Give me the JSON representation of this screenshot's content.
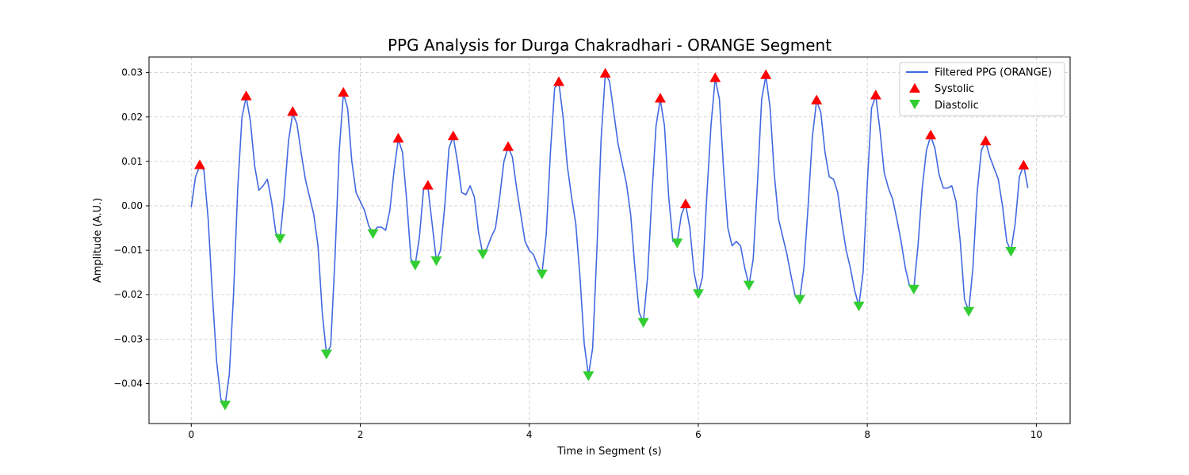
{
  "chart_data": {
    "type": "line",
    "title": "PPG Analysis for Durga Chakradhari - ORANGE Segment",
    "xlabel": "Time in Segment (s)",
    "ylabel": "Amplitude (A.U.)",
    "xlim": [
      -0.5,
      10.4
    ],
    "ylim": [
      -0.049,
      0.0335
    ],
    "xticks": [
      0,
      2,
      4,
      6,
      8,
      10
    ],
    "xtick_labels": [
      "0",
      "2",
      "4",
      "6",
      "8",
      "10"
    ],
    "yticks": [
      -0.04,
      -0.03,
      -0.02,
      -0.01,
      0.0,
      0.01,
      0.02,
      0.03
    ],
    "ytick_labels": [
      "−0.04",
      "−0.03",
      "−0.02",
      "−0.01",
      "0.00",
      "0.01",
      "0.02",
      "0.03"
    ],
    "grid": true,
    "legend_position": "top-right",
    "series": [
      {
        "name": "Filtered PPG (ORANGE)",
        "color": "#4169e1",
        "points": [
          [
            0.0,
            -0.0003
          ],
          [
            0.05,
            0.0065
          ],
          [
            0.1,
            0.009
          ],
          [
            0.15,
            0.008
          ],
          [
            0.2,
            -0.003
          ],
          [
            0.25,
            -0.02
          ],
          [
            0.3,
            -0.035
          ],
          [
            0.35,
            -0.0435
          ],
          [
            0.4,
            -0.0448
          ],
          [
            0.45,
            -0.038
          ],
          [
            0.5,
            -0.02
          ],
          [
            0.55,
            0.004
          ],
          [
            0.6,
            0.02
          ],
          [
            0.65,
            0.0245
          ],
          [
            0.7,
            0.019
          ],
          [
            0.75,
            0.009
          ],
          [
            0.8,
            0.0035
          ],
          [
            0.85,
            0.0045
          ],
          [
            0.9,
            0.006
          ],
          [
            0.95,
            0.001
          ],
          [
            1.0,
            -0.006
          ],
          [
            1.05,
            -0.0073
          ],
          [
            1.1,
            0.002
          ],
          [
            1.15,
            0.0145
          ],
          [
            1.2,
            0.0208
          ],
          [
            1.25,
            0.0185
          ],
          [
            1.3,
            0.012
          ],
          [
            1.35,
            0.006
          ],
          [
            1.4,
            0.002
          ],
          [
            1.45,
            -0.002
          ],
          [
            1.5,
            -0.009
          ],
          [
            1.55,
            -0.024
          ],
          [
            1.6,
            -0.0333
          ],
          [
            1.65,
            -0.0315
          ],
          [
            1.7,
            -0.012
          ],
          [
            1.75,
            0.012
          ],
          [
            1.8,
            0.0253
          ],
          [
            1.85,
            0.022
          ],
          [
            1.9,
            0.01
          ],
          [
            1.95,
            0.003
          ],
          [
            2.0,
            0.001
          ],
          [
            2.05,
            -0.001
          ],
          [
            2.1,
            -0.0045
          ],
          [
            2.15,
            -0.0062
          ],
          [
            2.2,
            -0.0048
          ],
          [
            2.25,
            -0.0048
          ],
          [
            2.3,
            -0.0055
          ],
          [
            2.35,
            -0.001
          ],
          [
            2.4,
            0.008
          ],
          [
            2.45,
            0.015
          ],
          [
            2.5,
            0.012
          ],
          [
            2.55,
            0.001
          ],
          [
            2.6,
            -0.012
          ],
          [
            2.65,
            -0.0133
          ],
          [
            2.7,
            -0.007
          ],
          [
            2.75,
            0.004
          ],
          [
            2.8,
            0.0043
          ],
          [
            2.85,
            -0.004
          ],
          [
            2.9,
            -0.0123
          ],
          [
            2.95,
            -0.01
          ],
          [
            3.0,
            0.0
          ],
          [
            3.05,
            0.013
          ],
          [
            3.1,
            0.0156
          ],
          [
            3.15,
            0.01
          ],
          [
            3.2,
            0.003
          ],
          [
            3.25,
            0.0025
          ],
          [
            3.3,
            0.0045
          ],
          [
            3.35,
            0.002
          ],
          [
            3.4,
            -0.006
          ],
          [
            3.45,
            -0.0108
          ],
          [
            3.5,
            -0.0095
          ],
          [
            3.55,
            -0.007
          ],
          [
            3.6,
            -0.005
          ],
          [
            3.65,
            0.002
          ],
          [
            3.7,
            0.01
          ],
          [
            3.75,
            0.0132
          ],
          [
            3.8,
            0.011
          ],
          [
            3.85,
            0.004
          ],
          [
            3.9,
            -0.002
          ],
          [
            3.95,
            -0.008
          ],
          [
            4.0,
            -0.01
          ],
          [
            4.05,
            -0.011
          ],
          [
            4.1,
            -0.0135
          ],
          [
            4.15,
            -0.0153
          ],
          [
            4.2,
            -0.0065
          ],
          [
            4.25,
            0.012
          ],
          [
            4.3,
            0.0265
          ],
          [
            4.35,
            0.0277
          ],
          [
            4.4,
            0.02
          ],
          [
            4.45,
            0.009
          ],
          [
            4.5,
            0.002
          ],
          [
            4.55,
            -0.004
          ],
          [
            4.6,
            -0.016
          ],
          [
            4.65,
            -0.031
          ],
          [
            4.7,
            -0.0382
          ],
          [
            4.75,
            -0.032
          ],
          [
            4.8,
            -0.01
          ],
          [
            4.85,
            0.015
          ],
          [
            4.9,
            0.0298
          ],
          [
            4.95,
            0.028
          ],
          [
            5.0,
            0.021
          ],
          [
            5.05,
            0.014
          ],
          [
            5.1,
            0.0095
          ],
          [
            5.15,
            0.005
          ],
          [
            5.2,
            -0.002
          ],
          [
            5.25,
            -0.014
          ],
          [
            5.3,
            -0.024
          ],
          [
            5.35,
            -0.0262
          ],
          [
            5.4,
            -0.016
          ],
          [
            5.45,
            0.002
          ],
          [
            5.5,
            0.018
          ],
          [
            5.55,
            0.024
          ],
          [
            5.6,
            0.018
          ],
          [
            5.65,
            0.002
          ],
          [
            5.7,
            -0.008
          ],
          [
            5.75,
            -0.0083
          ],
          [
            5.8,
            -0.002
          ],
          [
            5.85,
            0.0004
          ],
          [
            5.9,
            -0.005
          ],
          [
            5.95,
            -0.015
          ],
          [
            6.0,
            -0.0197
          ],
          [
            6.05,
            -0.016
          ],
          [
            6.1,
            0.002
          ],
          [
            6.15,
            0.018
          ],
          [
            6.2,
            0.0287
          ],
          [
            6.25,
            0.024
          ],
          [
            6.3,
            0.008
          ],
          [
            6.35,
            -0.005
          ],
          [
            6.4,
            -0.009
          ],
          [
            6.45,
            -0.008
          ],
          [
            6.5,
            -0.009
          ],
          [
            6.55,
            -0.014
          ],
          [
            6.6,
            -0.0178
          ],
          [
            6.65,
            -0.012
          ],
          [
            6.7,
            0.005
          ],
          [
            6.75,
            0.024
          ],
          [
            6.8,
            0.0293
          ],
          [
            6.85,
            0.022
          ],
          [
            6.9,
            0.007
          ],
          [
            6.95,
            -0.003
          ],
          [
            7.0,
            -0.007
          ],
          [
            7.05,
            -0.011
          ],
          [
            7.1,
            -0.016
          ],
          [
            7.15,
            -0.0205
          ],
          [
            7.2,
            -0.021
          ],
          [
            7.25,
            -0.014
          ],
          [
            7.3,
            0.0
          ],
          [
            7.35,
            0.0155
          ],
          [
            7.4,
            0.0237
          ],
          [
            7.45,
            0.021
          ],
          [
            7.5,
            0.012
          ],
          [
            7.55,
            0.0065
          ],
          [
            7.6,
            0.006
          ],
          [
            7.65,
            0.003
          ],
          [
            7.7,
            -0.004
          ],
          [
            7.75,
            -0.01
          ],
          [
            7.8,
            -0.014
          ],
          [
            7.85,
            -0.019
          ],
          [
            7.9,
            -0.0225
          ],
          [
            7.95,
            -0.015
          ],
          [
            8.0,
            0.005
          ],
          [
            8.05,
            0.022
          ],
          [
            8.1,
            0.0248
          ],
          [
            8.15,
            0.017
          ],
          [
            8.2,
            0.0075
          ],
          [
            8.25,
            0.004
          ],
          [
            8.3,
            0.0015
          ],
          [
            8.35,
            -0.003
          ],
          [
            8.4,
            -0.008
          ],
          [
            8.45,
            -0.014
          ],
          [
            8.5,
            -0.018
          ],
          [
            8.55,
            -0.0187
          ],
          [
            8.6,
            -0.009
          ],
          [
            8.65,
            0.004
          ],
          [
            8.7,
            0.0125
          ],
          [
            8.75,
            0.0157
          ],
          [
            8.8,
            0.013
          ],
          [
            8.85,
            0.007
          ],
          [
            8.9,
            0.004
          ],
          [
            8.95,
            0.004
          ],
          [
            9.0,
            0.0045
          ],
          [
            9.05,
            0.001
          ],
          [
            9.1,
            -0.008
          ],
          [
            9.15,
            -0.021
          ],
          [
            9.2,
            -0.0237
          ],
          [
            9.25,
            -0.014
          ],
          [
            9.3,
            0.003
          ],
          [
            9.35,
            0.0125
          ],
          [
            9.4,
            0.0145
          ],
          [
            9.45,
            0.011
          ],
          [
            9.5,
            0.0085
          ],
          [
            9.55,
            0.006
          ],
          [
            9.6,
            0.0
          ],
          [
            9.65,
            -0.008
          ],
          [
            9.7,
            -0.0102
          ],
          [
            9.75,
            -0.004
          ],
          [
            9.8,
            0.0065
          ],
          [
            9.85,
            0.0092
          ],
          [
            9.9,
            0.004
          ]
        ]
      },
      {
        "name": "Systolic",
        "color": "#ff0000",
        "marker": "triangle-up",
        "points": [
          [
            0.1,
            0.0092
          ],
          [
            0.65,
            0.0247
          ],
          [
            1.2,
            0.0212
          ],
          [
            1.8,
            0.0255
          ],
          [
            2.45,
            0.0152
          ],
          [
            2.8,
            0.0046
          ],
          [
            3.1,
            0.0157
          ],
          [
            3.75,
            0.0133
          ],
          [
            4.35,
            0.0279
          ],
          [
            4.9,
            0.0298
          ],
          [
            5.55,
            0.0242
          ],
          [
            5.85,
            0.0004
          ],
          [
            6.2,
            0.0288
          ],
          [
            6.8,
            0.0295
          ],
          [
            7.4,
            0.0238
          ],
          [
            8.1,
            0.0249
          ],
          [
            8.75,
            0.0159
          ],
          [
            9.4,
            0.0146
          ],
          [
            9.85,
            0.0091
          ]
        ]
      },
      {
        "name": "Diastolic",
        "color": "#32cd32",
        "marker": "triangle-down",
        "points": [
          [
            0.4,
            -0.0448
          ],
          [
            1.05,
            -0.0073
          ],
          [
            1.6,
            -0.0333
          ],
          [
            2.15,
            -0.0062
          ],
          [
            2.65,
            -0.0133
          ],
          [
            2.9,
            -0.0123
          ],
          [
            3.45,
            -0.0108
          ],
          [
            4.15,
            -0.0153
          ],
          [
            4.7,
            -0.0382
          ],
          [
            5.35,
            -0.0262
          ],
          [
            5.75,
            -0.0083
          ],
          [
            6.0,
            -0.0197
          ],
          [
            6.6,
            -0.0178
          ],
          [
            7.2,
            -0.021
          ],
          [
            7.9,
            -0.0225
          ],
          [
            8.55,
            -0.0187
          ],
          [
            9.2,
            -0.0237
          ],
          [
            9.7,
            -0.0102
          ]
        ]
      }
    ]
  }
}
